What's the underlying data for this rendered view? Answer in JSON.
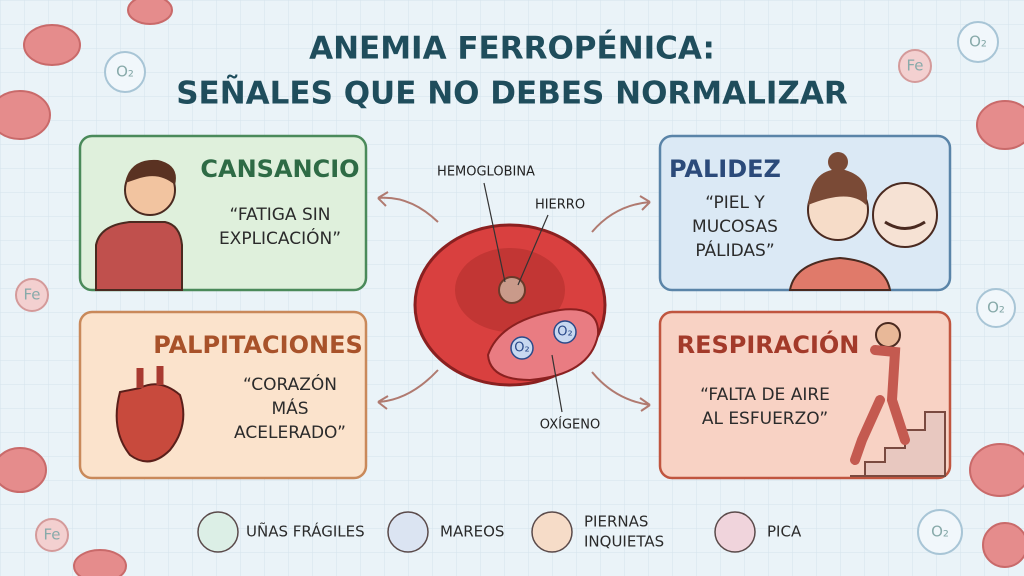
{
  "title": {
    "lines": [
      "ANEMIA FERROPÉNICA:",
      "SEÑALES QUE NO DEBES NORMALIZAR"
    ]
  },
  "cards": [
    {
      "title": "CANSANCIO",
      "quote": [
        "“FATIGA SIN",
        "EXPLICACIÓN”"
      ]
    },
    {
      "title": "PALIDEZ",
      "quote": [
        "“PIEL Y",
        "MUCOSAS",
        "PÁLIDAS”"
      ]
    },
    {
      "title": "PALPITACIONES",
      "quote": [
        "“CORAZÓN",
        "MÁS",
        "ACELERADO”"
      ]
    },
    {
      "title": "RESPIRACIÓN",
      "quote": [
        "“FALTA DE AIRE",
        "AL ESFUERZO”"
      ]
    }
  ],
  "cell": {
    "hemoglobin": "HEMOGLOBINA",
    "iron": "HIERRO",
    "oxygen": "OXÍGENO",
    "o2": "O₂"
  },
  "decor": {
    "o2": "O₂",
    "fe": "Fe"
  },
  "footer": [
    {
      "lines": [
        "UÑAS FRÁGILES"
      ]
    },
    {
      "lines": [
        "MAREOS"
      ]
    },
    {
      "lines": [
        "PIERNAS",
        "INQUIETAS"
      ]
    },
    {
      "lines": [
        "PICA"
      ]
    }
  ]
}
